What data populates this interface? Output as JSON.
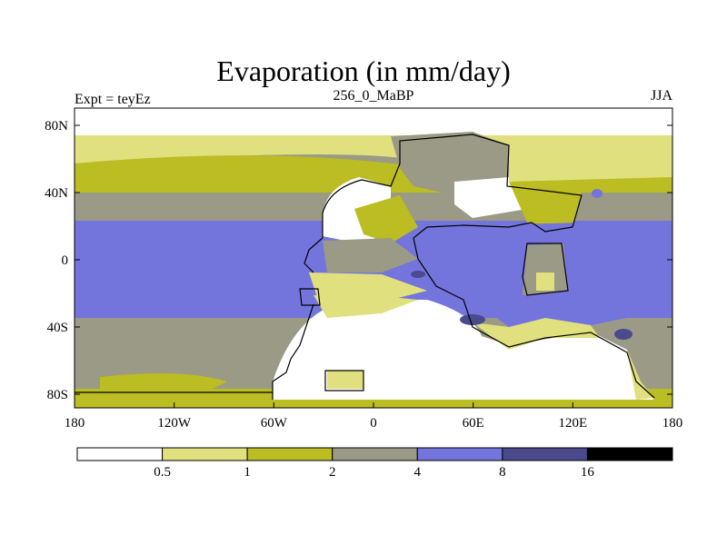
{
  "title": "Evaporation (in mm/day)",
  "experiment_label": "Expt = teyEz",
  "period_label": "256_0_MaBP",
  "season_label": "JJA",
  "axes": {
    "y_ticks": [
      "80N",
      "40N",
      "0",
      "40S",
      "80S"
    ],
    "x_ticks": [
      "180",
      "120W",
      "60W",
      "0",
      "60E",
      "120E",
      "180"
    ]
  },
  "colorbar": {
    "colors": [
      "#ffffff",
      "#e0e07e",
      "#bcbc23",
      "#9a9a86",
      "#7474dd",
      "#4a4a8c",
      "#000000"
    ],
    "labels": [
      "0.5",
      "1",
      "2",
      "4",
      "8",
      "16"
    ]
  }
}
